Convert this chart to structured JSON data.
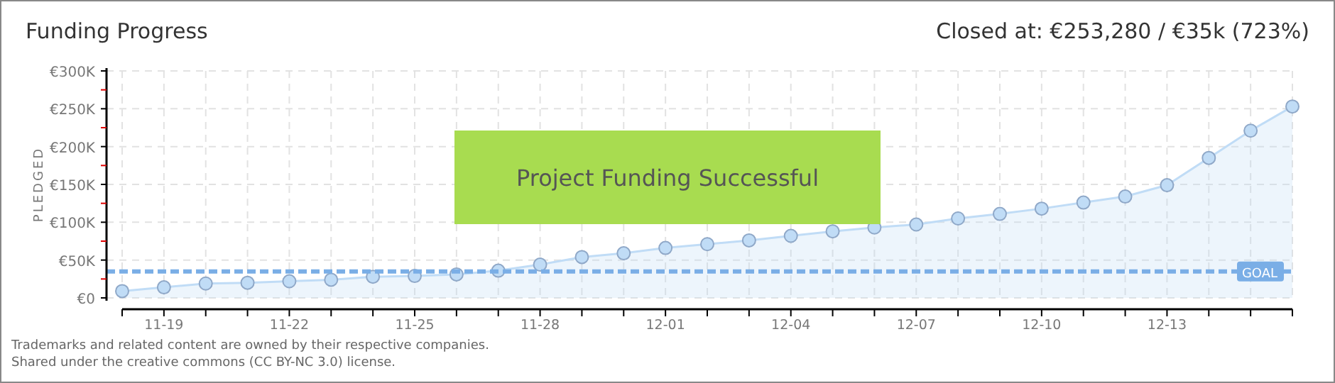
{
  "chart_data": {
    "type": "area",
    "title": "Funding Progress",
    "subtitle": "Closed at: €253,280 / €35k (723%)",
    "ylabel": "PLEDGED",
    "categories": [
      null,
      "11-19",
      null,
      null,
      "11-22",
      null,
      null,
      "11-25",
      null,
      null,
      "11-28",
      null,
      null,
      "12-01",
      null,
      null,
      "12-04",
      null,
      null,
      "12-07",
      null,
      null,
      "12-10",
      null,
      null,
      "12-13",
      null,
      null,
      null
    ],
    "series": [
      {
        "color": "#c0dcf6",
        "values": [
          9,
          14,
          19,
          20,
          22,
          24,
          28,
          29,
          31,
          36,
          44,
          54,
          59,
          66,
          71,
          76,
          82,
          88,
          93,
          97,
          105,
          111,
          118,
          126,
          134,
          149,
          185,
          221,
          253
        ]
      }
    ],
    "ylim": [
      0,
      300
    ],
    "yticks": [
      {
        "value": 0,
        "label": "€0"
      },
      {
        "value": 25,
        "label": null
      },
      {
        "value": 50,
        "label": "€50K"
      },
      {
        "value": 75,
        "label": null
      },
      {
        "value": 100,
        "label": "€100K"
      },
      {
        "value": 125,
        "label": null
      },
      {
        "value": 150,
        "label": "€150K"
      },
      {
        "value": 175,
        "label": null
      },
      {
        "value": 200,
        "label": "€200K"
      },
      {
        "value": 225,
        "label": null
      },
      {
        "value": 250,
        "label": "€250K"
      },
      {
        "value": 275,
        "label": null
      },
      {
        "value": 300,
        "label": "€300K"
      }
    ],
    "grid": true,
    "marker": "circle",
    "ref_lines": [
      {
        "axis": "y",
        "value": 35,
        "label": "GOAL",
        "color": "#7aaee6",
        "line_style": "dashed"
      }
    ],
    "annotations": [
      "Project Funding Successful",
      "Trademarks and related content are owned by their respective companies.",
      "Shared under the creative commons (CC BY-NC 3.0) license."
    ]
  }
}
